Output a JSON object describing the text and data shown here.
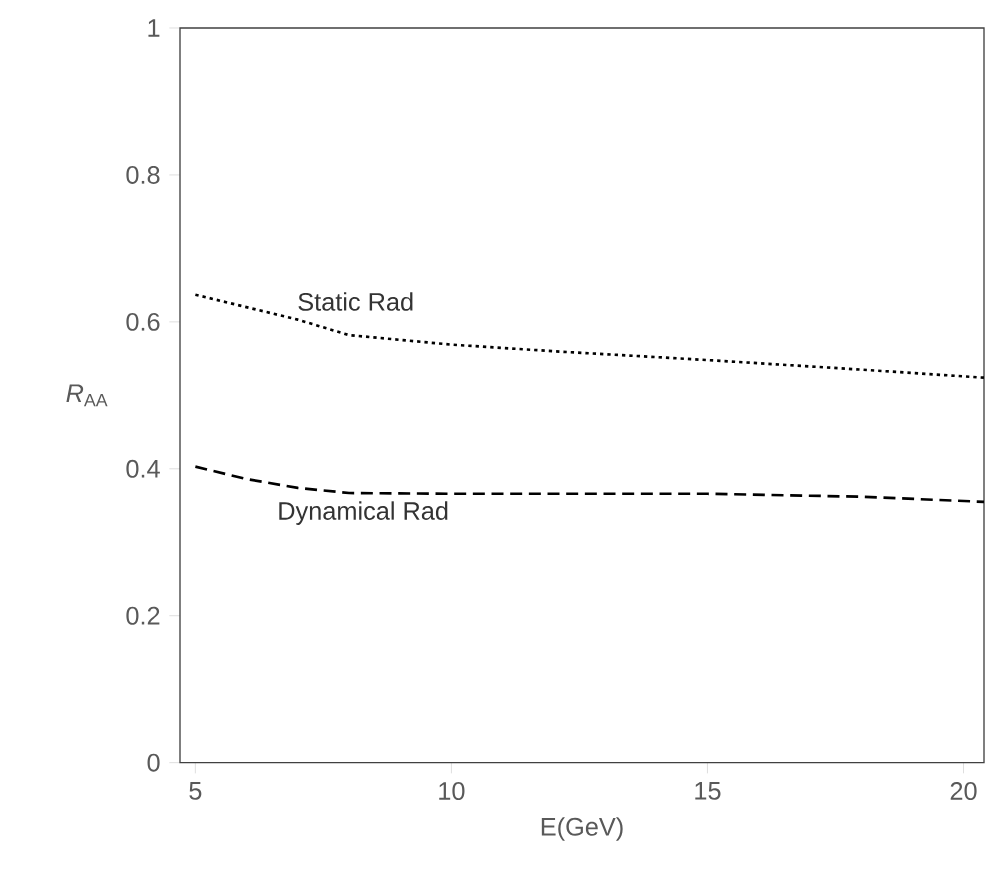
{
  "chart_data": {
    "type": "line",
    "xlabel": "E(GeV)",
    "ylabel": "*R*$_{AA}$",
    "x": [
      5,
      6,
      7,
      8,
      10,
      12,
      15,
      18,
      20.4
    ],
    "series": [
      {
        "name": "Static Rad",
        "color": "#000000",
        "line_style": "dotted",
        "values": [
          0.637,
          0.62,
          0.603,
          0.582,
          0.569,
          0.56,
          0.548,
          0.535,
          0.524
        ]
      },
      {
        "name": "Dynamical Rad",
        "color": "#000000",
        "line_style": "dashed",
        "values": [
          0.403,
          0.386,
          0.374,
          0.367,
          0.366,
          0.366,
          0.366,
          0.362,
          0.355
        ]
      }
    ],
    "xlim": [
      4.7,
      20.4
    ],
    "ylim": [
      0,
      1
    ],
    "xticks": [
      5,
      10,
      15,
      20
    ],
    "yticks": [
      0,
      0.2,
      0.4,
      0.6,
      0.8,
      1
    ],
    "grid": false,
    "marker": "none"
  }
}
